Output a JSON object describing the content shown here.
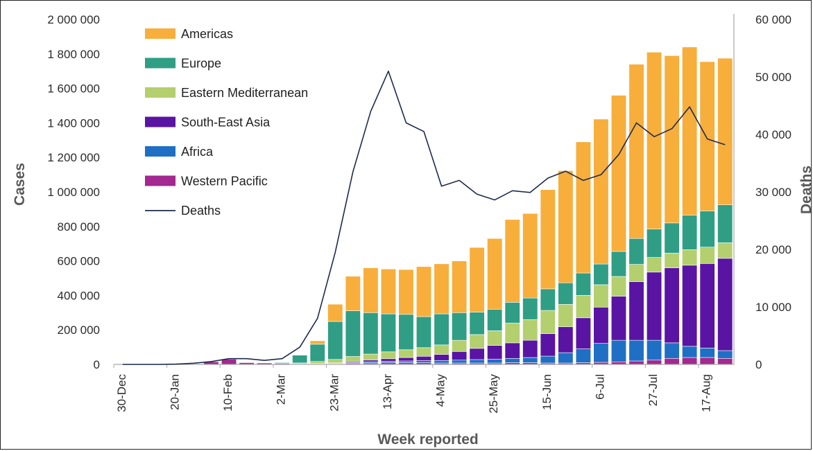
{
  "chart_data": {
    "type": "bar",
    "stacked": true,
    "title": "",
    "xlabel": "Week reported",
    "ylabel": "Cases",
    "y2label": "Deaths",
    "ylim": [
      0,
      2000000
    ],
    "y2lim": [
      0,
      60000
    ],
    "yticks": [
      "0",
      "200 000",
      "400 000",
      "600 000",
      "800 000",
      "1 000 000",
      "1 200 000",
      "1 400 000",
      "1 600 000",
      "1 800 000",
      "2 000 000"
    ],
    "y2ticks": [
      "0",
      "10 000",
      "20 000",
      "30 000",
      "40 000",
      "50 000",
      "60 000"
    ],
    "x_tick_labels": [
      "30-Dec",
      "20-Jan",
      "10-Feb",
      "2-Mar",
      "23-Mar",
      "13-Apr",
      "4-May",
      "25-May",
      "15-Jun",
      "6-Jul",
      "27-Jul",
      "17-Aug"
    ],
    "grid": false,
    "legend_position": "top-left",
    "categories": [
      "30-Dec",
      "6-Jan",
      "13-Jan",
      "20-Jan",
      "27-Jan",
      "3-Feb",
      "10-Feb",
      "17-Feb",
      "24-Feb",
      "2-Mar",
      "9-Mar",
      "16-Mar",
      "23-Mar",
      "30-Mar",
      "6-Apr",
      "13-Apr",
      "20-Apr",
      "27-Apr",
      "4-May",
      "11-May",
      "18-May",
      "25-May",
      "1-Jun",
      "8-Jun",
      "15-Jun",
      "22-Jun",
      "29-Jun",
      "6-Jul",
      "13-Jul",
      "20-Jul",
      "27-Jul",
      "3-Aug",
      "10-Aug",
      "17-Aug",
      "24-Aug"
    ],
    "series": [
      {
        "name": "Western Pacific",
        "color": "#a3288f",
        "values": [
          0,
          0,
          0,
          500,
          3000,
          15000,
          30000,
          10000,
          8000,
          5000,
          3000,
          3000,
          3000,
          5000,
          8000,
          10000,
          10000,
          10000,
          8000,
          8000,
          8000,
          8000,
          10000,
          10000,
          8000,
          8000,
          10000,
          12000,
          15000,
          20000,
          25000,
          35000,
          40000,
          40000,
          35000
        ]
      },
      {
        "name": "Africa",
        "color": "#1f6fc5",
        "values": [
          0,
          0,
          0,
          0,
          0,
          0,
          0,
          0,
          0,
          0,
          500,
          1000,
          3000,
          5000,
          7000,
          8000,
          10000,
          12000,
          15000,
          17000,
          20000,
          22000,
          25000,
          30000,
          40000,
          60000,
          80000,
          110000,
          125000,
          120000,
          115000,
          90000,
          65000,
          55000,
          45000
        ]
      },
      {
        "name": "South-East Asia",
        "color": "#5a14a3",
        "values": [
          0,
          0,
          0,
          0,
          0,
          0,
          0,
          0,
          0,
          0,
          0,
          1000,
          3000,
          6000,
          10000,
          15000,
          20000,
          25000,
          35000,
          50000,
          65000,
          80000,
          90000,
          100000,
          130000,
          150000,
          180000,
          210000,
          255000,
          340000,
          395000,
          435000,
          470000,
          490000,
          535000
        ]
      },
      {
        "name": "Eastern Mediterranean",
        "color": "#b3cf6e",
        "values": [
          0,
          0,
          0,
          0,
          0,
          0,
          0,
          0,
          0,
          500,
          5000,
          12000,
          20000,
          30000,
          35000,
          40000,
          45000,
          50000,
          55000,
          65000,
          80000,
          85000,
          115000,
          120000,
          135000,
          130000,
          130000,
          130000,
          115000,
          100000,
          85000,
          85000,
          90000,
          95000,
          90000
        ]
      },
      {
        "name": "Europe",
        "color": "#2f9e85",
        "values": [
          0,
          0,
          0,
          0,
          0,
          0,
          0,
          0,
          0,
          5000,
          45000,
          100000,
          220000,
          265000,
          240000,
          220000,
          205000,
          180000,
          180000,
          160000,
          130000,
          125000,
          120000,
          125000,
          125000,
          125000,
          130000,
          120000,
          145000,
          150000,
          165000,
          175000,
          200000,
          210000,
          220000
        ]
      },
      {
        "name": "Americas",
        "color": "#f7ae3b",
        "values": [
          0,
          0,
          0,
          0,
          0,
          0,
          0,
          0,
          0,
          0,
          2000,
          20000,
          100000,
          200000,
          260000,
          260000,
          260000,
          290000,
          290000,
          300000,
          375000,
          410000,
          480000,
          490000,
          575000,
          650000,
          760000,
          840000,
          905000,
          1010000,
          1025000,
          970000,
          975000,
          865000,
          850000
        ]
      }
    ],
    "line": {
      "name": "Deaths",
      "color": "#1d2a4d",
      "axis": "secondary",
      "values": [
        0,
        0,
        0,
        50,
        200,
        500,
        1000,
        1000,
        700,
        1000,
        3000,
        8000,
        19500,
        33500,
        44000,
        51000,
        42000,
        40500,
        31000,
        32000,
        29600,
        28600,
        30200,
        29900,
        32400,
        33600,
        32000,
        33000,
        36500,
        42000,
        39600,
        41000,
        44800,
        39200,
        38200
      ]
    }
  }
}
